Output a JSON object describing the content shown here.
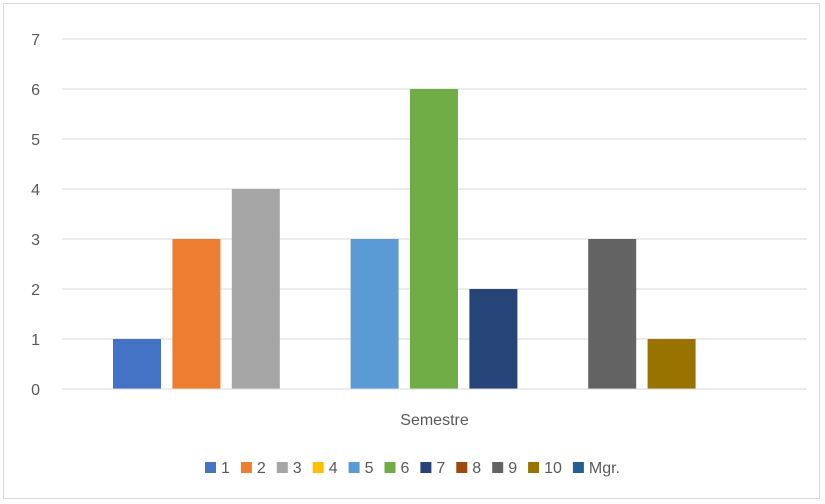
{
  "chart_data": {
    "type": "bar",
    "categories": [
      "Semestre"
    ],
    "xlabel": "Semestre",
    "ylabel": "",
    "title": "",
    "ylim": [
      0,
      7
    ],
    "y_ticks": [
      0,
      1,
      2,
      3,
      4,
      5,
      6,
      7
    ],
    "grid": true,
    "legend_position": "bottom",
    "series": [
      {
        "name": "1",
        "values": [
          1
        ],
        "color": "#4472C4"
      },
      {
        "name": "2",
        "values": [
          3
        ],
        "color": "#ED7D31"
      },
      {
        "name": "3",
        "values": [
          4
        ],
        "color": "#A5A5A5"
      },
      {
        "name": "4",
        "values": [
          0
        ],
        "color": "#FFC000"
      },
      {
        "name": "5",
        "values": [
          3
        ],
        "color": "#5B9BD5"
      },
      {
        "name": "6",
        "values": [
          6
        ],
        "color": "#70AD47"
      },
      {
        "name": "7",
        "values": [
          2
        ],
        "color": "#264478"
      },
      {
        "name": "8",
        "values": [
          0
        ],
        "color": "#9E480E"
      },
      {
        "name": "9",
        "values": [
          3
        ],
        "color": "#636363"
      },
      {
        "name": "10",
        "values": [
          1
        ],
        "color": "#997300"
      },
      {
        "name": "Mgr.",
        "values": [
          0
        ],
        "color": "#255E91"
      }
    ]
  }
}
